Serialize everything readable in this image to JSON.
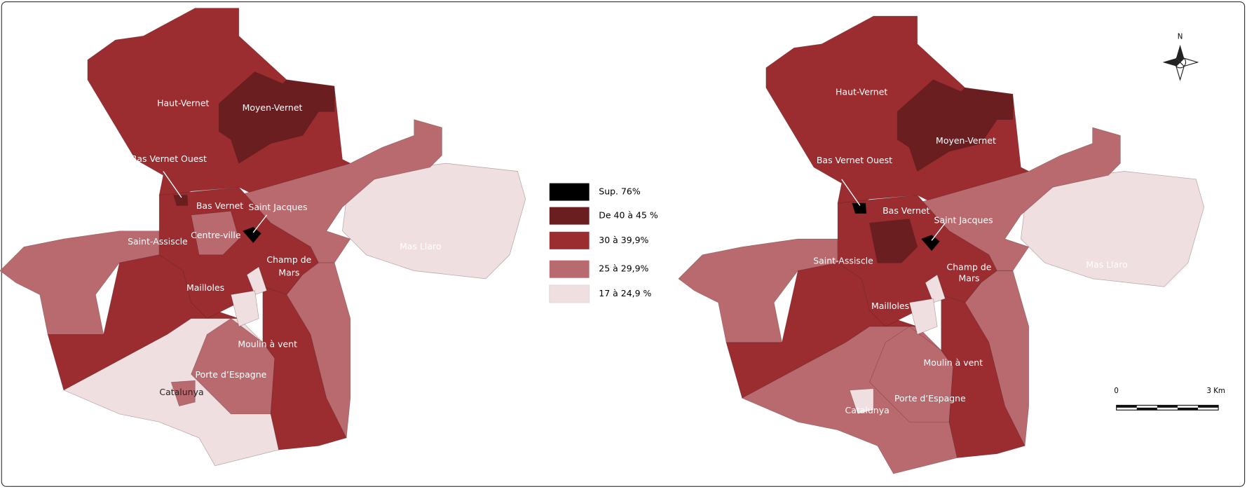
{
  "maps": [
    {
      "labels": [
        "Haut-Vernet",
        "Moyen-Vernet",
        "Bas Vernet Ouest",
        "Bas Vernet",
        "Saint Jacques",
        "Saint-Assiscle",
        "Centre-ville",
        [
          "Champ de",
          "Mars"
        ],
        "Mailloles",
        "Moulin à vent",
        "Porte d’Espagne",
        "Catalunya",
        "Mas Llaro"
      ]
    },
    {
      "labels": [
        "Haut-Vernet",
        "Moyen-Vernet",
        "Bas Vernet Ouest",
        "Bas Vernet",
        "Saint Jacques",
        "Saint-Assiscle",
        [
          "Champ de",
          "Mars"
        ],
        "Mailloles",
        "Moulin à vent",
        "Porte d’Espagne",
        "Catalunya",
        "Mas Llaro"
      ]
    }
  ],
  "legend": [
    {
      "label": "Sup. 76%",
      "color": "#000000"
    },
    {
      "label": "De 40 à 45 %",
      "color": "#6b1e20"
    },
    {
      "label": "30 à 39,9%",
      "color": "#9b2c30"
    },
    {
      "label": "25 à 29,9%",
      "color": "#b96a6e"
    },
    {
      "label": "17 à 24,9 %",
      "color": "#efdfe0"
    }
  ],
  "compass": "N",
  "scale": {
    "start": "0",
    "end": "3 Km"
  }
}
